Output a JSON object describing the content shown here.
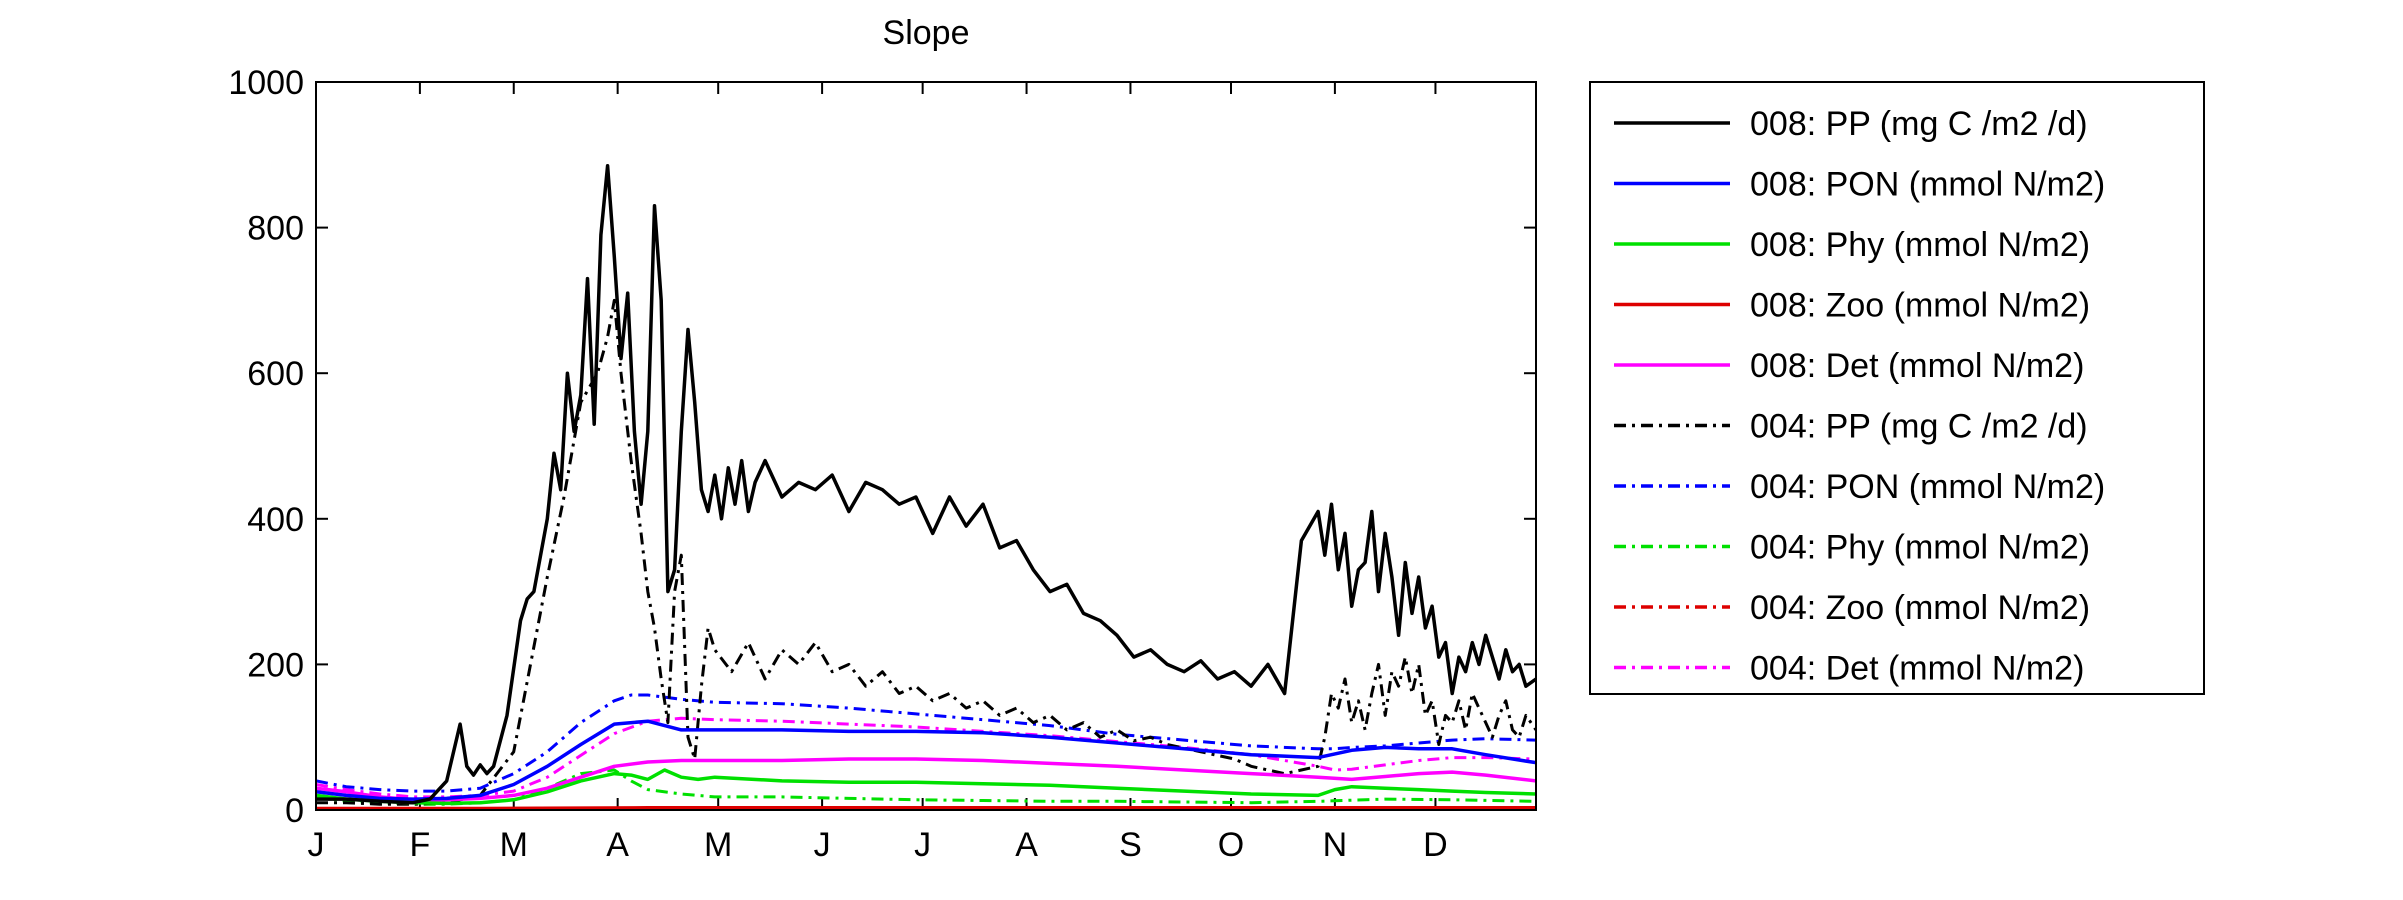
{
  "chart_data": {
    "type": "line",
    "title": "Slope",
    "xlabel": "",
    "ylabel": "",
    "ylim": [
      0,
      1000
    ],
    "yticks": [
      0,
      200,
      400,
      600,
      800,
      1000
    ],
    "xlim": [
      1,
      365
    ],
    "xticks": [
      {
        "label": "J",
        "day": 1
      },
      {
        "label": "F",
        "day": 32
      },
      {
        "label": "M",
        "day": 60
      },
      {
        "label": "A",
        "day": 91
      },
      {
        "label": "M",
        "day": 121
      },
      {
        "label": "J",
        "day": 152
      },
      {
        "label": "J",
        "day": 182
      },
      {
        "label": "A",
        "day": 213
      },
      {
        "label": "S",
        "day": 244
      },
      {
        "label": "O",
        "day": 274
      },
      {
        "label": "N",
        "day": 305
      },
      {
        "label": "D",
        "day": 335
      }
    ],
    "grid": false,
    "legend_position": "outside-right",
    "series": [
      {
        "name": "008: PP (mg C /m2 /d)",
        "color": "#000000",
        "style": "solid",
        "x": [
          1,
          10,
          20,
          30,
          35,
          40,
          44,
          46,
          48,
          50,
          52,
          54,
          58,
          62,
          64,
          66,
          70,
          72,
          74,
          76,
          78,
          80,
          82,
          84,
          86,
          88,
          90,
          92,
          94,
          96,
          98,
          100,
          102,
          104,
          106,
          108,
          110,
          112,
          114,
          116,
          118,
          120,
          122,
          124,
          126,
          128,
          130,
          132,
          135,
          140,
          145,
          150,
          155,
          160,
          165,
          170,
          175,
          180,
          185,
          190,
          195,
          200,
          205,
          210,
          215,
          220,
          225,
          230,
          235,
          240,
          245,
          250,
          255,
          260,
          265,
          270,
          275,
          280,
          285,
          290,
          295,
          300,
          302,
          304,
          306,
          308,
          310,
          312,
          314,
          316,
          318,
          320,
          322,
          324,
          326,
          328,
          330,
          332,
          334,
          336,
          338,
          340,
          342,
          344,
          346,
          348,
          350,
          352,
          354,
          356,
          358,
          360,
          362,
          365
        ],
        "y": [
          15,
          15,
          12,
          10,
          15,
          40,
          118,
          60,
          48,
          62,
          50,
          60,
          130,
          260,
          290,
          300,
          400,
          490,
          440,
          600,
          520,
          570,
          730,
          530,
          790,
          885,
          760,
          620,
          710,
          520,
          420,
          520,
          830,
          700,
          300,
          330,
          520,
          660,
          560,
          440,
          410,
          460,
          400,
          470,
          420,
          480,
          410,
          450,
          480,
          430,
          450,
          440,
          460,
          410,
          450,
          440,
          420,
          430,
          380,
          430,
          390,
          420,
          360,
          370,
          330,
          300,
          310,
          270,
          260,
          240,
          210,
          220,
          200,
          190,
          205,
          180,
          190,
          170,
          200,
          160,
          370,
          410,
          350,
          420,
          330,
          380,
          280,
          330,
          340,
          410,
          300,
          380,
          320,
          240,
          340,
          270,
          320,
          250,
          280,
          210,
          230,
          160,
          210,
          190,
          230,
          200,
          240,
          210,
          180,
          220,
          190,
          200,
          170,
          180
        ]
      },
      {
        "name": "008: PON (mmol N/m2)",
        "color": "#0000ff",
        "style": "solid",
        "x": [
          1,
          10,
          20,
          30,
          40,
          50,
          60,
          70,
          80,
          90,
          100,
          110,
          120,
          140,
          160,
          180,
          200,
          220,
          240,
          260,
          280,
          300,
          310,
          320,
          330,
          340,
          350,
          365
        ],
        "y": [
          25,
          20,
          16,
          15,
          16,
          20,
          35,
          60,
          90,
          118,
          122,
          110,
          110,
          110,
          108,
          108,
          106,
          100,
          92,
          84,
          76,
          72,
          82,
          86,
          84,
          84,
          76,
          65
        ]
      },
      {
        "name": "008: Phy (mmol N/m2)",
        "color": "#00e000",
        "style": "solid",
        "x": [
          1,
          10,
          20,
          30,
          40,
          50,
          60,
          70,
          80,
          90,
          95,
          100,
          105,
          110,
          115,
          120,
          140,
          160,
          180,
          200,
          220,
          240,
          260,
          280,
          300,
          305,
          310,
          320,
          330,
          340,
          350,
          365
        ],
        "y": [
          20,
          15,
          12,
          10,
          9,
          10,
          14,
          25,
          40,
          50,
          48,
          42,
          55,
          45,
          42,
          45,
          40,
          38,
          38,
          36,
          34,
          30,
          26,
          22,
          20,
          28,
          32,
          30,
          28,
          26,
          24,
          22
        ]
      },
      {
        "name": "008: Zoo (mmol N/m2)",
        "color": "#dd0000",
        "style": "solid",
        "x": [
          1,
          50,
          100,
          150,
          200,
          250,
          300,
          365
        ],
        "y": [
          2,
          2,
          3,
          3,
          3,
          3,
          3,
          3
        ]
      },
      {
        "name": "008: Det (mmol N/m2)",
        "color": "#ff00ff",
        "style": "solid",
        "x": [
          1,
          10,
          20,
          30,
          40,
          50,
          60,
          70,
          80,
          90,
          100,
          110,
          120,
          140,
          160,
          180,
          200,
          220,
          240,
          260,
          280,
          300,
          310,
          320,
          330,
          340,
          350,
          365
        ],
        "y": [
          30,
          25,
          18,
          14,
          14,
          16,
          20,
          30,
          45,
          60,
          66,
          68,
          68,
          68,
          70,
          70,
          68,
          64,
          60,
          55,
          50,
          45,
          42,
          46,
          50,
          52,
          48,
          40
        ]
      },
      {
        "name": "004: PP (mg C /m2 /d)",
        "color": "#000000",
        "style": "dashdot",
        "x": [
          1,
          10,
          20,
          30,
          40,
          50,
          60,
          65,
          70,
          75,
          80,
          85,
          88,
          90,
          92,
          95,
          98,
          100,
          102,
          104,
          106,
          108,
          110,
          112,
          114,
          116,
          118,
          120,
          125,
          130,
          135,
          140,
          145,
          150,
          155,
          160,
          165,
          170,
          175,
          180,
          185,
          190,
          195,
          200,
          205,
          210,
          215,
          220,
          225,
          230,
          235,
          240,
          245,
          250,
          255,
          260,
          265,
          270,
          275,
          280,
          285,
          290,
          295,
          300,
          302,
          304,
          306,
          308,
          310,
          312,
          314,
          316,
          318,
          320,
          322,
          324,
          326,
          328,
          330,
          332,
          334,
          336,
          338,
          340,
          342,
          344,
          346,
          348,
          350,
          352,
          354,
          356,
          358,
          360,
          362,
          365
        ],
        "y": [
          10,
          10,
          8,
          8,
          10,
          20,
          80,
          200,
          320,
          430,
          560,
          600,
          650,
          700,
          600,
          480,
          380,
          300,
          250,
          180,
          120,
          300,
          350,
          100,
          70,
          170,
          250,
          220,
          190,
          230,
          180,
          220,
          200,
          230,
          190,
          200,
          170,
          190,
          160,
          170,
          150,
          160,
          140,
          150,
          130,
          140,
          120,
          130,
          110,
          120,
          100,
          110,
          95,
          100,
          90,
          85,
          80,
          75,
          70,
          60,
          55,
          50,
          55,
          60,
          100,
          160,
          140,
          180,
          120,
          150,
          110,
          160,
          200,
          130,
          190,
          170,
          210,
          160,
          200,
          130,
          150,
          90,
          130,
          120,
          150,
          110,
          160,
          140,
          120,
          100,
          130,
          150,
          110,
          100,
          130,
          110
        ]
      },
      {
        "name": "004: PON (mmol N/m2)",
        "color": "#0000ff",
        "style": "dashdot",
        "x": [
          1,
          10,
          20,
          30,
          40,
          50,
          60,
          70,
          80,
          90,
          95,
          100,
          110,
          120,
          140,
          160,
          180,
          200,
          220,
          240,
          260,
          280,
          300,
          305,
          310,
          320,
          330,
          340,
          350,
          365
        ],
        "y": [
          40,
          32,
          28,
          26,
          26,
          30,
          50,
          80,
          120,
          150,
          158,
          158,
          152,
          148,
          146,
          140,
          132,
          124,
          116,
          104,
          96,
          88,
          84,
          84,
          86,
          88,
          92,
          96,
          98,
          96
        ]
      },
      {
        "name": "004: Phy (mmol N/m2)",
        "color": "#00e000",
        "style": "dashdot",
        "x": [
          1,
          10,
          20,
          30,
          40,
          50,
          60,
          70,
          80,
          90,
          95,
          100,
          110,
          120,
          140,
          160,
          180,
          200,
          220,
          240,
          260,
          280,
          300,
          320,
          340,
          365
        ],
        "y": [
          18,
          12,
          10,
          8,
          8,
          10,
          14,
          30,
          50,
          55,
          40,
          28,
          22,
          18,
          18,
          16,
          14,
          13,
          12,
          12,
          11,
          10,
          12,
          15,
          14,
          12
        ]
      },
      {
        "name": "004: Zoo (mmol N/m2)",
        "color": "#dd0000",
        "style": "dashdot",
        "x": [
          1,
          50,
          100,
          150,
          200,
          250,
          300,
          365
        ],
        "y": [
          1,
          1,
          2,
          2,
          2,
          2,
          2,
          2
        ]
      },
      {
        "name": "004: Det (mmol N/m2)",
        "color": "#ff00ff",
        "style": "dashdot",
        "x": [
          1,
          10,
          20,
          30,
          40,
          50,
          60,
          70,
          80,
          90,
          100,
          110,
          120,
          140,
          160,
          180,
          200,
          220,
          240,
          260,
          280,
          300,
          305,
          310,
          320,
          330,
          340,
          350,
          365
        ],
        "y": [
          35,
          28,
          22,
          18,
          18,
          20,
          26,
          45,
          75,
          105,
          122,
          126,
          124,
          122,
          118,
          114,
          108,
          102,
          94,
          86,
          76,
          60,
          55,
          56,
          62,
          68,
          72,
          72,
          70
        ]
      }
    ]
  }
}
